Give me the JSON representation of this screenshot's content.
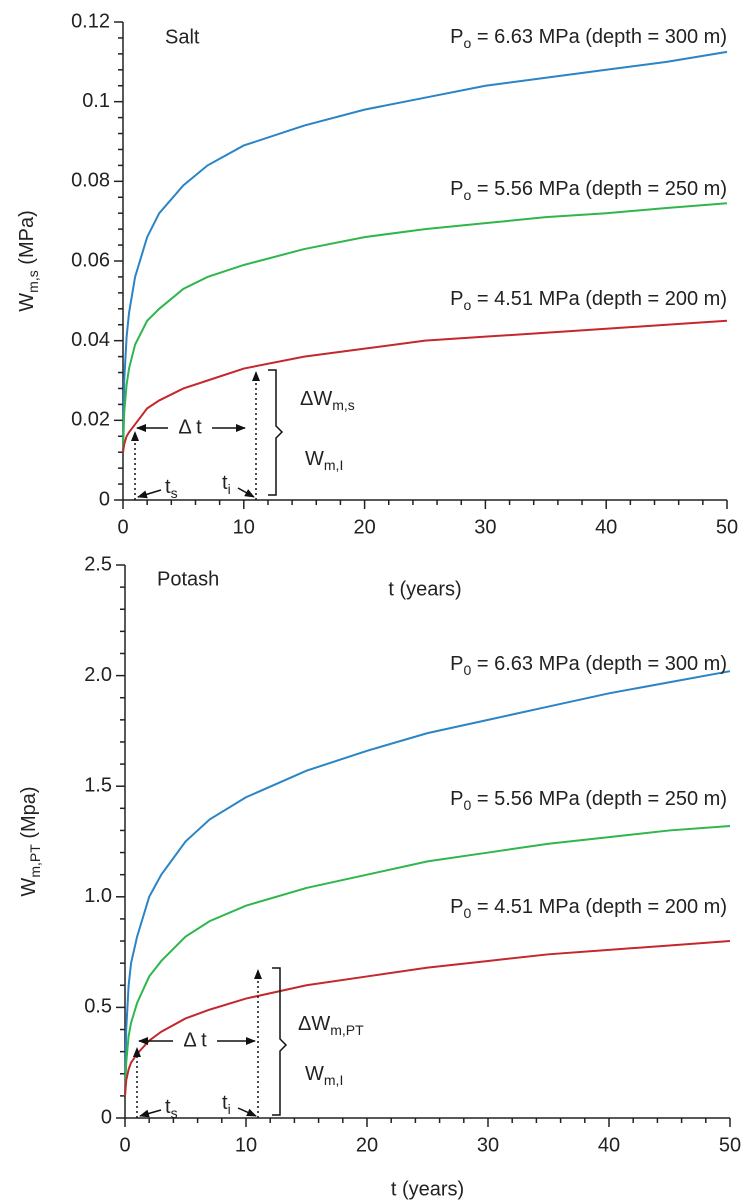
{
  "chart_data": [
    {
      "type": "line",
      "panel_label": "Salt",
      "x_label": "t (years)",
      "y_label": {
        "base": "W",
        "sub": "m,s",
        "tail": " (MPa)"
      },
      "x": [
        0,
        0.1,
        0.3,
        0.5,
        1,
        2,
        3,
        5,
        7,
        10,
        15,
        20,
        25,
        30,
        35,
        40,
        45,
        50
      ],
      "xlim": [
        0,
        50
      ],
      "xticks": [
        0,
        10,
        20,
        30,
        40,
        50
      ],
      "ylim": [
        0,
        0.12
      ],
      "yticks": [
        0,
        0.02,
        0.04,
        0.06,
        0.08,
        0.1,
        0.12
      ],
      "series": [
        {
          "label": {
            "base": "P",
            "sub": "o",
            "tail": " = 6.63 MPa (depth = 300 m)"
          },
          "color": "#2b84c6",
          "values": [
            0.012,
            0.03,
            0.041,
            0.047,
            0.056,
            0.066,
            0.072,
            0.079,
            0.084,
            0.089,
            0.094,
            0.098,
            0.101,
            0.104,
            0.106,
            0.108,
            0.11,
            0.1125
          ]
        },
        {
          "label": {
            "base": "P",
            "sub": "o",
            "tail": " = 5.56 MPa (depth = 250 m)"
          },
          "color": "#2fb64c",
          "values": [
            0.012,
            0.022,
            0.029,
            0.033,
            0.039,
            0.045,
            0.048,
            0.053,
            0.056,
            0.059,
            0.063,
            0.066,
            0.068,
            0.0695,
            0.071,
            0.072,
            0.0733,
            0.0745
          ]
        },
        {
          "label": {
            "base": "P",
            "sub": "o",
            "tail": " = 4.51 MPa (depth = 200 m)"
          },
          "color": "#c3282c",
          "values": [
            0.012,
            0.014,
            0.016,
            0.017,
            0.019,
            0.023,
            0.025,
            0.028,
            0.03,
            0.033,
            0.036,
            0.038,
            0.04,
            0.041,
            0.042,
            0.043,
            0.044,
            0.045
          ]
        }
      ],
      "delta_t_label": "Δ t",
      "delta_w_label": {
        "base": "ΔW",
        "sub": "m,s"
      },
      "w_label": {
        "base": "W",
        "sub": "m,I"
      },
      "ts_label": {
        "base": "t",
        "sub": "s"
      },
      "ti_label": {
        "base": "t",
        "sub": "i"
      }
    },
    {
      "type": "line",
      "panel_label": "Potash",
      "x_label": "t (years)",
      "y_label": {
        "base": "W",
        "sub": "m,PT",
        "tail": " (Mpa)"
      },
      "x": [
        0,
        0.1,
        0.3,
        0.5,
        1,
        2,
        3,
        5,
        7,
        10,
        15,
        20,
        25,
        30,
        35,
        40,
        45,
        50
      ],
      "xlim": [
        0,
        50
      ],
      "xticks": [
        0,
        10,
        20,
        30,
        40,
        50
      ],
      "ylim": [
        0,
        2.5
      ],
      "yticks": [
        0,
        0.5,
        {
          "value": 1,
          "label": "1.0"
        },
        1.5,
        {
          "value": 2,
          "label": "2.0"
        },
        2.5
      ],
      "series": [
        {
          "label": {
            "base": "P",
            "sub": "0",
            "tail": " = 6.63 MPa (depth = 300 m)"
          },
          "color": "#2b84c6",
          "values": [
            0.1,
            0.4,
            0.6,
            0.7,
            0.82,
            1.0,
            1.1,
            1.25,
            1.35,
            1.45,
            1.57,
            1.66,
            1.74,
            1.8,
            1.86,
            1.92,
            1.97,
            2.02
          ]
        },
        {
          "label": {
            "base": "P",
            "sub": "0",
            "tail": " = 5.56 MPa (depth = 250 m)"
          },
          "color": "#2fb64c",
          "values": [
            0.1,
            0.25,
            0.37,
            0.43,
            0.52,
            0.64,
            0.71,
            0.82,
            0.89,
            0.96,
            1.04,
            1.1,
            1.16,
            1.2,
            1.24,
            1.27,
            1.3,
            1.32
          ]
        },
        {
          "label": {
            "base": "P",
            "sub": "0",
            "tail": " = 4.51 MPa (depth = 200 m)"
          },
          "color": "#c3282c",
          "values": [
            0.1,
            0.17,
            0.22,
            0.25,
            0.29,
            0.35,
            0.39,
            0.45,
            0.49,
            0.54,
            0.6,
            0.64,
            0.68,
            0.71,
            0.74,
            0.76,
            0.78,
            0.8
          ]
        }
      ],
      "delta_t_label": "Δ t",
      "delta_w_label": {
        "base": "ΔW",
        "sub": "m,PT"
      },
      "w_label": {
        "base": "W",
        "sub": "m,I"
      },
      "ts_label": {
        "base": "t",
        "sub": "s"
      },
      "ti_label": {
        "base": "t",
        "sub": "i"
      }
    }
  ]
}
